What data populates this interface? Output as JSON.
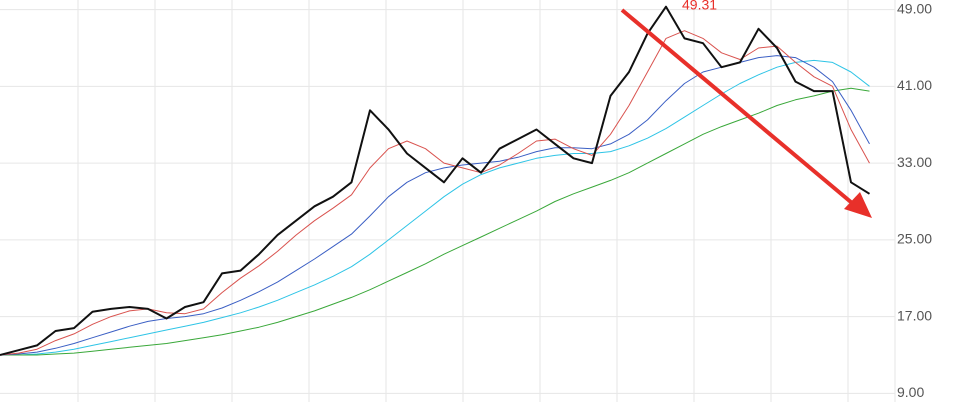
{
  "chart_data": {
    "type": "line",
    "annotation": "49.31",
    "categories": [
      null,
      null,
      null,
      null,
      null,
      null,
      null,
      null,
      null,
      null,
      null,
      null,
      null,
      null,
      null,
      null,
      null,
      null,
      null,
      null,
      null,
      null,
      null,
      null,
      null,
      null,
      null,
      null,
      null,
      null,
      null,
      null,
      null,
      null,
      null,
      null,
      null,
      null,
      null,
      null,
      null,
      null,
      null,
      null,
      null,
      null,
      null,
      null
    ],
    "series": [
      {
        "color": "#2ec4e6",
        "values": [
          13.0,
          13.0,
          13.1,
          13.3,
          13.6,
          14.0,
          14.4,
          14.8,
          15.2,
          15.6,
          16.0,
          16.4,
          16.9,
          17.4,
          18.0,
          18.7,
          19.5,
          20.3,
          21.2,
          22.2,
          23.5,
          25.0,
          26.5,
          28.0,
          29.5,
          30.8,
          31.8,
          32.5,
          33.0,
          33.5,
          33.8,
          34.0,
          34.0,
          34.2,
          34.8,
          35.6,
          36.6,
          37.8,
          39.0,
          40.2,
          41.3,
          42.2,
          43.0,
          43.5,
          43.7,
          43.5,
          42.5,
          41.0
        ]
      },
      {
        "color": "#3aa83a",
        "values": [
          13.0,
          13.0,
          13.0,
          13.1,
          13.2,
          13.4,
          13.6,
          13.8,
          14.0,
          14.2,
          14.5,
          14.8,
          15.1,
          15.5,
          15.9,
          16.4,
          17.0,
          17.6,
          18.3,
          19.0,
          19.8,
          20.7,
          21.6,
          22.5,
          23.5,
          24.4,
          25.3,
          26.2,
          27.1,
          28.0,
          29.0,
          29.8,
          30.5,
          31.2,
          32.0,
          33.0,
          34.0,
          35.0,
          36.0,
          36.8,
          37.5,
          38.2,
          39.0,
          39.6,
          40.0,
          40.5,
          40.8,
          40.5
        ]
      },
      {
        "color": "#3b5fc4",
        "values": [
          13.0,
          13.1,
          13.3,
          13.7,
          14.2,
          14.8,
          15.4,
          16.0,
          16.5,
          16.8,
          17.0,
          17.3,
          17.9,
          18.7,
          19.6,
          20.6,
          21.8,
          23.0,
          24.3,
          25.6,
          27.5,
          29.5,
          31.0,
          32.0,
          32.5,
          32.8,
          33.0,
          33.2,
          33.6,
          34.2,
          34.6,
          34.6,
          34.5,
          35.0,
          36.0,
          37.5,
          39.5,
          41.3,
          42.5,
          43.0,
          43.5,
          44.0,
          44.2,
          44.0,
          43.0,
          41.5,
          38.5,
          35.0
        ]
      },
      {
        "color": "#d9534f",
        "values": [
          13.0,
          13.2,
          13.6,
          14.5,
          15.2,
          16.2,
          17.0,
          17.6,
          17.8,
          17.4,
          17.3,
          17.8,
          19.5,
          21.0,
          22.3,
          23.8,
          25.5,
          27.0,
          28.3,
          29.7,
          32.5,
          34.5,
          35.3,
          34.5,
          33.0,
          32.5,
          32.0,
          32.8,
          34.0,
          35.3,
          35.5,
          34.5,
          33.8,
          36.0,
          39.0,
          42.5,
          46.0,
          46.8,
          46.0,
          44.5,
          43.8,
          45.0,
          45.2,
          43.5,
          42.0,
          41.0,
          36.5,
          33.0
        ]
      },
      {
        "color": "#111111",
        "values": [
          13.0,
          13.5,
          14.0,
          15.5,
          15.8,
          17.5,
          17.8,
          18.0,
          17.8,
          16.8,
          18.0,
          18.5,
          21.5,
          21.8,
          23.5,
          25.5,
          27.0,
          28.5,
          29.5,
          31.0,
          38.5,
          36.5,
          34.0,
          32.5,
          31.0,
          33.5,
          32.0,
          34.5,
          35.5,
          36.5,
          35.0,
          33.5,
          33.0,
          40.0,
          42.5,
          46.5,
          49.3,
          46.0,
          45.5,
          43.0,
          43.5,
          47.0,
          45.0,
          41.5,
          40.5,
          40.5,
          31.0,
          29.8
        ]
      }
    ],
    "ylim": [
      8.1,
      50.0
    ],
    "yticks": [
      {
        "value": 9,
        "label": "9.00"
      },
      {
        "value": 17,
        "label": "17.00"
      },
      {
        "value": 25,
        "label": "25.00"
      },
      {
        "value": 33,
        "label": "33.00"
      },
      {
        "value": 41,
        "label": "41.00"
      },
      {
        "value": 49,
        "label": "49.00"
      }
    ],
    "grid": true
  }
}
